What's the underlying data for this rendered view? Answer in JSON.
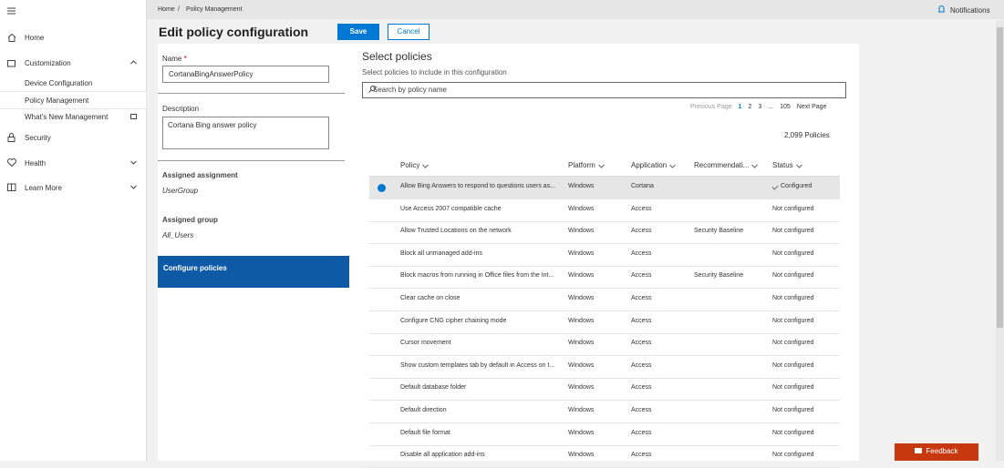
{
  "nav": {
    "items": [
      {
        "label": "Home"
      },
      {
        "label": "Customization",
        "children": [
          "Device Configuration",
          "Policy Management",
          "What's New Management"
        ]
      },
      {
        "label": "Security"
      },
      {
        "label": "Health"
      },
      {
        "label": "Learn More"
      }
    ]
  },
  "breadcrumb": {
    "items": [
      "Home",
      "Policy Management"
    ],
    "separator": "/"
  },
  "notifications": "Notifications",
  "header": {
    "title": "Edit policy configuration",
    "save": "Save",
    "cancel": "Cancel"
  },
  "form": {
    "name_label": "Name",
    "required_mark": "*",
    "name_value": "CortanaBingAnswerPolicy",
    "description_label": "Description",
    "description_value": "Cortana Bing answer policy",
    "assignment_label": "Assigned assignment",
    "assignment_value": "UserGroup",
    "group_label": "Assigned group",
    "group_value": "All_Users",
    "step": "Configure policies"
  },
  "policies": {
    "title": "Select policies",
    "subtitle": "Select policies to include in this configuration",
    "search_placeholder": "Search by policy name",
    "pagination": {
      "previous": "Previous Page",
      "pages": [
        1,
        2,
        3,
        "...",
        105
      ],
      "next": "Next Page"
    },
    "count": "2,099 Policies",
    "columns": [
      "Policy",
      "Platform",
      "Application",
      "Recommendati...",
      "Status"
    ],
    "rows": [
      [
        "Allow Bing Answers to respond to questions users as...",
        "Windows",
        "Cortana",
        null,
        "Configured"
      ],
      [
        "Use Access 2007 compatible cache",
        "Windows",
        "Access",
        null,
        "Not configured"
      ],
      [
        "Allow Trusted Locations on the network",
        "Windows",
        "Access",
        "Security Baseline",
        "Not configured"
      ],
      [
        "Block all unmanaged add-ins",
        "Windows",
        "Access",
        null,
        "Not configured"
      ],
      [
        "Block macros from running in Office files from the Int...",
        "Windows",
        "Access",
        "Security Baseline",
        "Not configured"
      ],
      [
        "Clear cache on close",
        "Windows",
        "Access",
        null,
        "Not configured"
      ],
      [
        "Configure CNG cipher chaining mode",
        "Windows",
        "Access",
        null,
        "Not configured"
      ],
      [
        "Cursor movement",
        "Windows",
        "Access",
        null,
        "Not configured"
      ],
      [
        "Show custom templates tab by default in Access on t...",
        "Windows",
        "Access",
        null,
        "Not configured"
      ],
      [
        "Default database folder",
        "Windows",
        "Access",
        null,
        "Not configured"
      ],
      [
        "Default direction",
        "Windows",
        "Access",
        null,
        "Not configured"
      ],
      [
        "Default file format",
        "Windows",
        "Access",
        null,
        "Not configured"
      ],
      [
        "Disable all application add-ins",
        "Windows",
        "Access",
        null,
        "Not configured"
      ]
    ]
  },
  "feedback": "Feedback"
}
